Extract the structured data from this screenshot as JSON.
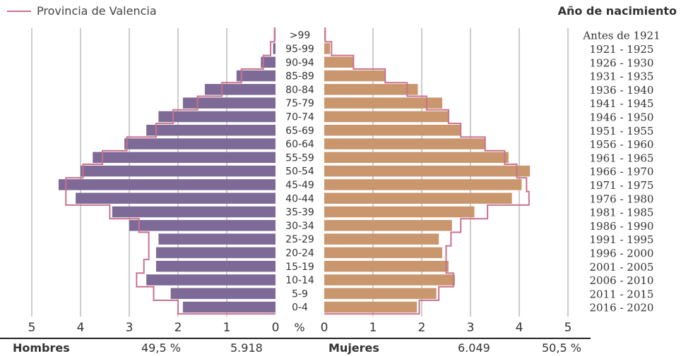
{
  "legend": {
    "label": "Provincia de Valencia",
    "color": "#c9728d"
  },
  "birth_title": "Año de nacimiento",
  "pct_label": "%",
  "colors": {
    "men": "#7d6a96",
    "women": "#c9966e",
    "outline": "#c9728d",
    "grid": "#bbbbbb"
  },
  "footer": {
    "men_label": "Hombres",
    "men_pct": "49,5 %",
    "men_count": "5.918",
    "women_label": "Mujeres",
    "women_count": "6.049",
    "women_pct": "50,5 %"
  },
  "chart_data": {
    "type": "bar",
    "subtype": "population-pyramid",
    "x_ticks_men": [
      "5",
      "4",
      "3",
      "2",
      "1",
      "0"
    ],
    "x_ticks_women": [
      "0",
      "1",
      "2",
      "3",
      "4",
      "5"
    ],
    "xlim": [
      0,
      5
    ],
    "age_groups": [
      ">99",
      "95-99",
      "90-94",
      "85-89",
      "80-84",
      "75-79",
      "70-74",
      "65-69",
      "60-64",
      "55-59",
      "50-54",
      "45-49",
      "40-44",
      "35-39",
      "30-34",
      "25-29",
      "20-24",
      "15-19",
      "10-14",
      "5-9",
      "0-4"
    ],
    "birth_years": [
      "Antes de 1921",
      "1921 - 1925",
      "1926 - 1930",
      "1931 - 1935",
      "1936 - 1940",
      "1941 - 1945",
      "1946 - 1950",
      "1951 - 1955",
      "1956 - 1960",
      "1961 - 1965",
      "1966 - 1970",
      "1971 - 1975",
      "1976 - 1980",
      "1981 - 1985",
      "1986 - 1990",
      "1991 - 1995",
      "1996 - 2000",
      "2001 - 2005",
      "2006 - 2010",
      "2011 - 2015",
      "2016 - 2020"
    ],
    "series": [
      {
        "name": "Hombres",
        "values": [
          0.02,
          0.05,
          0.3,
          0.8,
          1.45,
          1.9,
          2.4,
          2.65,
          3.1,
          3.75,
          4.0,
          4.45,
          4.1,
          3.35,
          3.0,
          2.4,
          2.45,
          2.45,
          2.65,
          2.15,
          1.9
        ]
      },
      {
        "name": "Mujeres",
        "values": [
          0.02,
          0.12,
          0.6,
          1.25,
          1.92,
          2.42,
          2.55,
          2.8,
          3.3,
          3.78,
          4.22,
          4.05,
          3.85,
          3.08,
          2.62,
          2.35,
          2.42,
          2.55,
          2.68,
          2.3,
          1.9
        ]
      },
      {
        "name": "Provincia de Valencia - Hombres",
        "values": [
          0.02,
          0.1,
          0.25,
          0.7,
          1.1,
          1.6,
          2.1,
          2.45,
          3.05,
          3.55,
          3.95,
          4.3,
          4.3,
          3.4,
          2.8,
          2.6,
          2.6,
          2.7,
          2.85,
          2.5,
          2.0
        ]
      },
      {
        "name": "Provincia de Valencia - Mujeres",
        "values": [
          0.02,
          0.15,
          0.6,
          1.25,
          1.7,
          2.1,
          2.55,
          2.8,
          3.3,
          3.7,
          3.95,
          4.15,
          4.2,
          3.35,
          2.8,
          2.6,
          2.5,
          2.5,
          2.65,
          2.35,
          1.95
        ]
      }
    ]
  }
}
